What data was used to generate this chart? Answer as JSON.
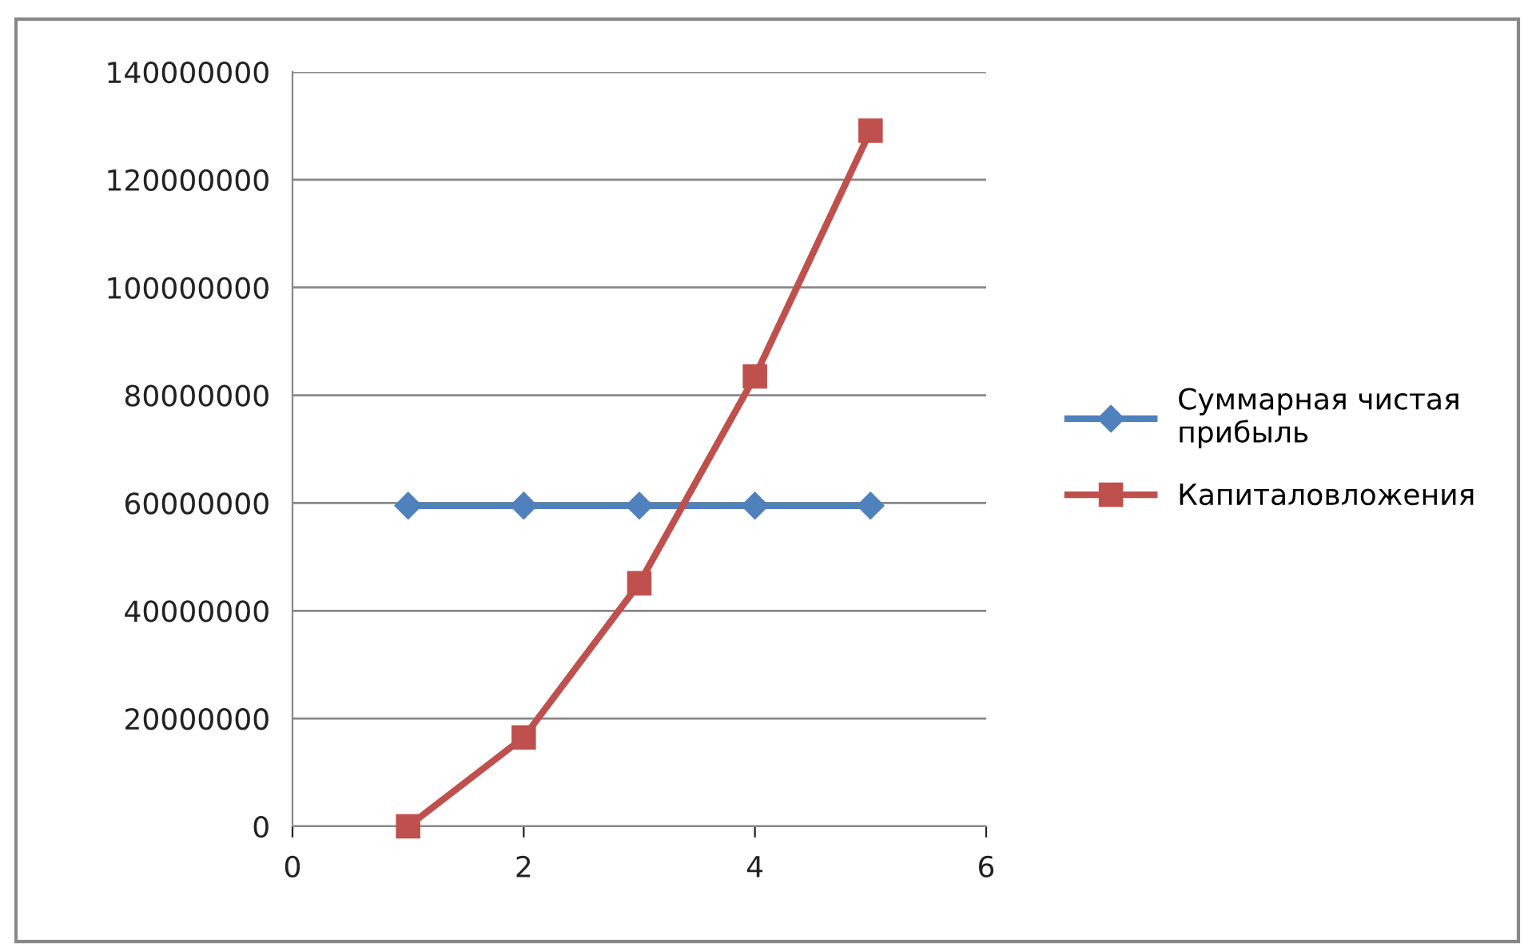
{
  "chart_data": {
    "type": "line",
    "x": [
      1,
      2,
      3,
      4,
      5
    ],
    "series": [
      {
        "name": "Суммарная чистая\nприбыль",
        "color": "#4f81bd",
        "marker": "diamond",
        "values": [
          59500000,
          59500000,
          59500000,
          59500000,
          59500000
        ]
      },
      {
        "name": "Капиталовложения",
        "color": "#c0504d",
        "marker": "square",
        "values": [
          0,
          16500000,
          45100000,
          83500000,
          129100000
        ]
      }
    ],
    "xlim": [
      0,
      6
    ],
    "xticks": [
      0,
      2,
      4,
      6
    ],
    "ylim": [
      0,
      140000000
    ],
    "yticks": [
      0,
      20000000,
      40000000,
      60000000,
      80000000,
      100000000,
      120000000,
      140000000
    ],
    "grid": "y",
    "legend": "right",
    "line_style": "solid"
  }
}
